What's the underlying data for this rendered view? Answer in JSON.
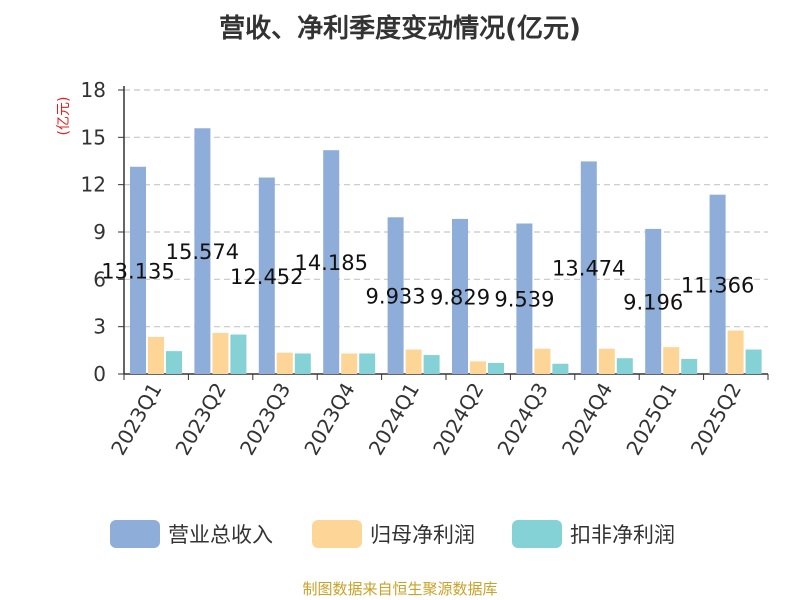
{
  "title": "营收、净利季度变动情况(亿元)",
  "footer": "制图数据来自恒生聚源数据库",
  "chart_data": {
    "type": "bar",
    "title": "营收、净利季度变动情况(亿元)",
    "ylabel": "(亿元)",
    "ylim": [
      0,
      18
    ],
    "yticks": [
      0,
      3,
      6,
      9,
      12,
      15,
      18
    ],
    "grid": true,
    "legend_position": "bottom",
    "categories": [
      "2023Q1",
      "2023Q2",
      "2023Q3",
      "2023Q4",
      "2024Q1",
      "2024Q2",
      "2024Q3",
      "2024Q4",
      "2025Q1",
      "2025Q2"
    ],
    "series": [
      {
        "name": "营业总收入",
        "color": "#8eadd9",
        "values": [
          13.135,
          15.574,
          12.452,
          14.185,
          9.933,
          9.829,
          9.539,
          13.474,
          9.196,
          11.366
        ],
        "labels": [
          "13.135",
          "15.574",
          "12.452",
          "14.185",
          "9.933",
          "9.829",
          "9.539",
          "13.474",
          "9.196",
          "11.366"
        ]
      },
      {
        "name": "归母净利润",
        "color": "#fdd597",
        "values": [
          2.35,
          2.6,
          1.35,
          1.3,
          1.55,
          0.8,
          1.6,
          1.6,
          1.7,
          2.75
        ]
      },
      {
        "name": "扣非净利润",
        "color": "#84d2d5",
        "values": [
          1.45,
          2.5,
          1.3,
          1.3,
          1.2,
          0.7,
          0.65,
          1.0,
          0.95,
          1.55
        ]
      }
    ]
  }
}
